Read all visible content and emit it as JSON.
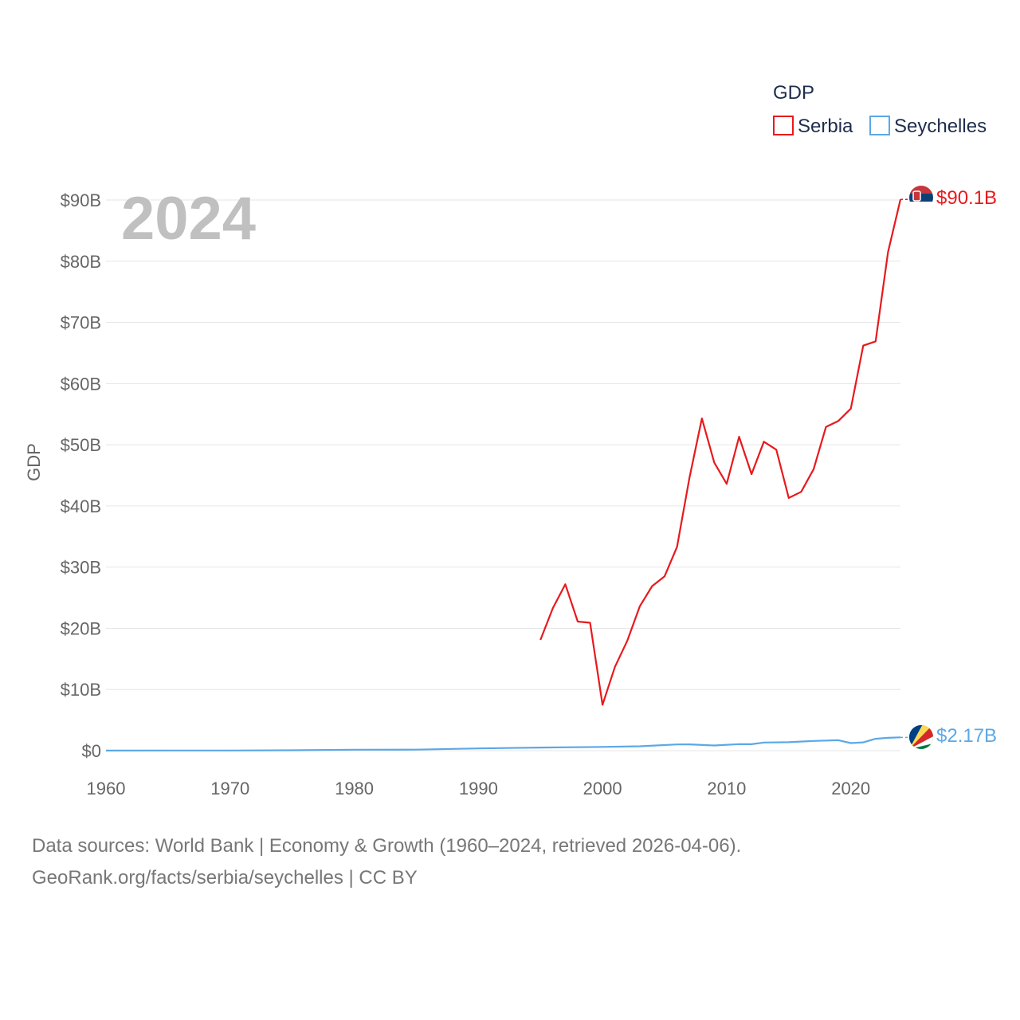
{
  "chart_data": {
    "type": "line",
    "title": "",
    "year_label": "2024",
    "ylabel": "GDP",
    "xlabel": "",
    "xlim": [
      1960,
      2024
    ],
    "ylim": [
      0,
      90
    ],
    "x_ticks": [
      1960,
      1970,
      1980,
      1990,
      2000,
      2010,
      2020
    ],
    "x_tick_labels": [
      "1960",
      "1970",
      "1980",
      "1990",
      "2000",
      "2010",
      "2020"
    ],
    "y_ticks": [
      0,
      10,
      20,
      30,
      40,
      50,
      60,
      70,
      80,
      90
    ],
    "y_tick_labels": [
      "$0",
      "$10B",
      "$20B",
      "$30B",
      "$40B",
      "$50B",
      "$60B",
      "$70B",
      "$80B",
      "$90B"
    ],
    "legend": {
      "title": "GDP",
      "position": "top-right"
    },
    "series": [
      {
        "name": "Serbia",
        "color": "#e8191d",
        "end_label": "$90.1B",
        "flag_icon": "serbia-flag-icon",
        "x": [
          1995,
          1996,
          1997,
          1998,
          1999,
          2000,
          2001,
          2002,
          2003,
          2004,
          2005,
          2006,
          2007,
          2008,
          2009,
          2010,
          2011,
          2012,
          2013,
          2014,
          2015,
          2016,
          2017,
          2018,
          2019,
          2020,
          2021,
          2022,
          2023,
          2024
        ],
        "values": [
          18.1,
          23.3,
          27.2,
          21.1,
          20.9,
          7.5,
          13.7,
          18.0,
          23.6,
          26.9,
          28.5,
          33.3,
          44.6,
          54.3,
          47.1,
          43.6,
          51.3,
          45.2,
          50.5,
          49.2,
          41.3,
          42.3,
          46.0,
          52.9,
          53.9,
          55.9,
          66.2,
          66.9,
          81.5,
          90.1
        ]
      },
      {
        "name": "Seychelles",
        "color": "#5ca8e6",
        "end_label": "$2.17B",
        "flag_icon": "seychelles-flag-icon",
        "x": [
          1960,
          1965,
          1970,
          1975,
          1980,
          1985,
          1990,
          1995,
          2000,
          2003,
          2006,
          2007,
          2009,
          2011,
          2012,
          2013,
          2015,
          2017,
          2019,
          2020,
          2021,
          2022,
          2023,
          2024
        ],
        "values": [
          0.01,
          0.02,
          0.03,
          0.07,
          0.15,
          0.17,
          0.37,
          0.51,
          0.61,
          0.71,
          1.02,
          1.03,
          0.85,
          1.07,
          1.06,
          1.33,
          1.38,
          1.59,
          1.7,
          1.24,
          1.35,
          1.94,
          2.1,
          2.17
        ]
      }
    ]
  },
  "footer": {
    "line1": "Data sources: World Bank | Economy & Growth (1960–2024, retrieved 2026-04-06).",
    "line2": "GeoRank.org/facts/serbia/seychelles | CC BY"
  },
  "colors": {
    "grid": "#e6e6e6",
    "tick_text": "#666666",
    "legend_text": "#1f2d4d",
    "year_label": "#c0c0c0"
  }
}
